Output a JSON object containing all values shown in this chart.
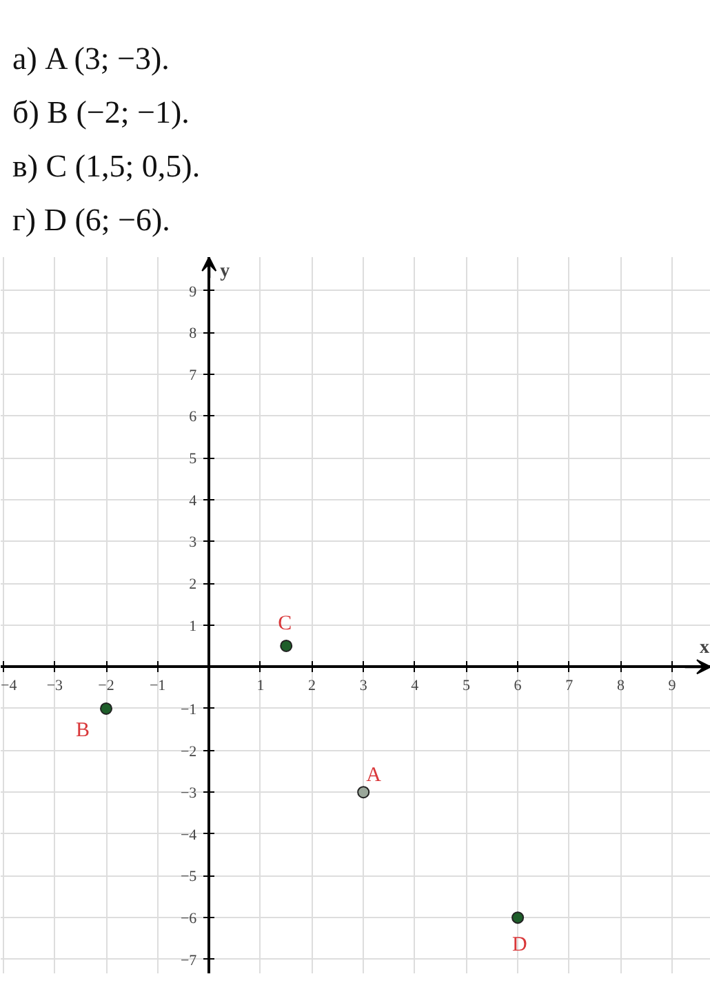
{
  "chart_data": {
    "type": "scatter",
    "xlabel": "x",
    "ylabel": "y",
    "x": [
      3,
      -2,
      1.5,
      6
    ],
    "series": [
      {
        "values": [
          -3,
          -1,
          0.5,
          -6
        ],
        "colors": [
          "#9aa79a",
          "#1e5e2a",
          "#1e5e2a",
          "#1e5e2a"
        ]
      }
    ],
    "marker": "circle",
    "grid": true,
    "xlim": [
      -4.05,
      9.75
    ],
    "ylim": [
      -7.35,
      9.8
    ],
    "xticks": [
      -4,
      -3,
      -2,
      -1,
      1,
      2,
      3,
      4,
      5,
      6,
      7,
      8,
      9
    ],
    "yticks": [
      -7,
      -6,
      -5,
      -4,
      -3,
      -2,
      -1,
      1,
      2,
      3,
      4,
      5,
      6,
      7,
      8,
      9
    ],
    "annotations": [
      "а) A (3; −3).",
      "б) B (−2; −1).",
      "в) C (1,5; 0,5).",
      "г) D (6; −6).",
      {
        "text": "A",
        "x": 3,
        "y": -3
      },
      {
        "text": "B",
        "x": -2,
        "y": -1
      },
      {
        "text": "C",
        "x": 1.5,
        "y": 0.5
      },
      {
        "text": "D",
        "x": 6,
        "y": -6
      }
    ]
  }
}
